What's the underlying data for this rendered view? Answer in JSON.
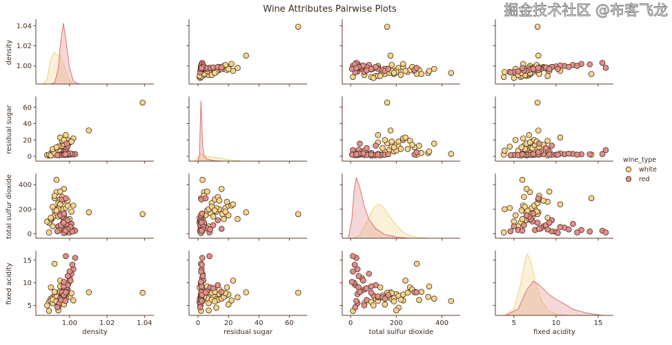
{
  "chart_data": {
    "type": "scatter",
    "subtype": "pairplot",
    "title": "Wine Attributes Pairwise Plots",
    "variables": [
      "density",
      "residual sugar",
      "total sulfur dioxide",
      "fixed acidity"
    ],
    "ranges": {
      "density": [
        0.982,
        1.045
      ],
      "residual sugar": [
        -5.9,
        71.6
      ],
      "total sulfur dioxide": [
        -37,
        480
      ],
      "fixed acidity": [
        2.8,
        16.8
      ]
    },
    "ticks": {
      "density": [
        {
          "v": 1.0,
          "label": "1.00"
        },
        {
          "v": 1.02,
          "label": "1.02"
        },
        {
          "v": 1.04,
          "label": "1.04"
        }
      ],
      "residual sugar": [
        {
          "v": 0,
          "label": "0"
        },
        {
          "v": 20,
          "label": "20"
        },
        {
          "v": 40,
          "label": "40"
        },
        {
          "v": 60,
          "label": "60"
        }
      ],
      "total sulfur dioxide": [
        {
          "v": 0,
          "label": "0"
        },
        {
          "v": 200,
          "label": "200"
        },
        {
          "v": 400,
          "label": "400"
        }
      ],
      "fixed acidity": [
        {
          "v": 5,
          "label": "5"
        },
        {
          "v": 10,
          "label": "10"
        },
        {
          "v": 15,
          "label": "15"
        }
      ]
    },
    "grid": false,
    "legend": {
      "title": "wine_type",
      "placement": "right",
      "entries": [
        "white",
        "red"
      ]
    },
    "colors": {
      "white": "#f3d68e",
      "red": "#df8f8c",
      "edge": "#4b2c1c",
      "white_line": "#eed27f",
      "red_line": "#e06c6c"
    },
    "series": [
      {
        "name": "white",
        "points": [
          [
            0.99,
            1.2,
            110,
            6.5
          ],
          [
            0.991,
            2,
            130,
            6.8
          ],
          [
            0.992,
            5,
            150,
            7.0
          ],
          [
            0.993,
            8,
            170,
            6.9
          ],
          [
            0.994,
            10,
            140,
            7.2
          ],
          [
            0.995,
            12,
            180,
            6.4
          ],
          [
            0.996,
            14,
            200,
            7.5
          ],
          [
            0.997,
            16,
            160,
            6.8
          ],
          [
            0.998,
            18,
            210,
            7.1
          ],
          [
            0.999,
            20,
            230,
            7.4
          ],
          [
            0.989,
            1,
            90,
            5.8
          ],
          [
            0.988,
            1.5,
            100,
            5.0
          ],
          [
            0.99,
            3,
            120,
            6.0
          ],
          [
            0.992,
            6,
            190,
            6.6
          ],
          [
            0.994,
            9,
            250,
            7.8
          ],
          [
            0.995,
            11,
            280,
            8.0
          ],
          [
            0.996,
            13,
            300,
            6.2
          ],
          [
            0.993,
            4,
            340,
            6.9
          ],
          [
            0.997,
            15.5,
            366,
            6.5
          ],
          [
            0.993,
            3,
            440,
            6.0
          ],
          [
            0.992,
            2,
            290,
            14.2
          ],
          [
            1.0,
            17,
            120,
            6.9
          ],
          [
            1.002,
            22,
            230,
            6.1
          ],
          [
            1.0103,
            31.6,
            175,
            7.9
          ],
          [
            1.039,
            65.8,
            160,
            7.8
          ],
          [
            0.991,
            7,
            60,
            5.5
          ],
          [
            0.989,
            2,
            10,
            3.8
          ],
          [
            0.994,
            12,
            210,
            4.5
          ],
          [
            0.996,
            19,
            260,
            9.0
          ],
          [
            0.995,
            23,
            240,
            10.5
          ],
          [
            0.99,
            1.1,
            130,
            9.0
          ],
          [
            0.998,
            26,
            120,
            6.8
          ],
          [
            0.992,
            4,
            310,
            8.0
          ],
          [
            0.994,
            7,
            200,
            3.9
          ],
          [
            0.997,
            20,
            150,
            5.2
          ],
          [
            0.999,
            14,
            270,
            8.5
          ],
          [
            0.991,
            9,
            220,
            6.3
          ],
          [
            0.993,
            11,
            190,
            5.9
          ],
          [
            1.001,
            18,
            180,
            7.7
          ],
          [
            0.995,
            6,
            344,
            9.2
          ]
        ],
        "kde": {
          "density": {
            "x": [
              0.986,
              0.988,
              0.99,
              0.9916,
              0.993,
              0.995,
              0.997,
              0.999,
              1.001,
              1.003
            ],
            "y": [
              0,
              0.08,
              0.4,
              0.5,
              0.47,
              0.45,
              0.3,
              0.12,
              0.02,
              0
            ]
          },
          "residual sugar": {
            "x": [
              -2,
              0,
              1.5,
              4,
              8,
              12,
              16,
              20,
              25,
              30
            ],
            "y": [
              0,
              0.05,
              0.12,
              0.09,
              0.07,
              0.06,
              0.04,
              0.02,
              0.01,
              0
            ]
          },
          "total sulfur dioxide": {
            "x": [
              10,
              40,
              70,
              100,
              120,
              140,
              170,
              200,
              240,
              280,
              350
            ],
            "y": [
              0,
              0.05,
              0.25,
              0.48,
              0.54,
              0.5,
              0.35,
              0.2,
              0.07,
              0.02,
              0
            ]
          },
          "fixed acidity": {
            "x": [
              3.8,
              5,
              5.8,
              6.3,
              6.6,
              7.0,
              7.5,
              8.2,
              9,
              10,
              11.5
            ],
            "y": [
              0,
              0.1,
              0.5,
              0.85,
              0.97,
              0.85,
              0.55,
              0.25,
              0.08,
              0.02,
              0
            ]
          }
        }
      },
      {
        "name": "red",
        "points": [
          [
            0.996,
            2,
            30,
            7.5
          ],
          [
            0.997,
            2.2,
            40,
            8.0
          ],
          [
            0.998,
            2.5,
            60,
            8.5
          ],
          [
            0.999,
            2,
            20,
            9.5
          ],
          [
            0.9995,
            1.9,
            15,
            10.0
          ],
          [
            1.0,
            2.6,
            50,
            11.0
          ],
          [
            1.001,
            3,
            80,
            12.0
          ],
          [
            1.002,
            2.4,
            30,
            13.0
          ],
          [
            1.003,
            2.8,
            25,
            15.5
          ],
          [
            0.998,
            7.5,
            10,
            15.9
          ],
          [
            0.9975,
            1.8,
            100,
            7.2
          ],
          [
            0.997,
            2.1,
            120,
            7.0
          ],
          [
            0.996,
            2,
            140,
            6.8
          ],
          [
            0.995,
            1.9,
            150,
            6.5
          ],
          [
            0.994,
            1.6,
            60,
            5.0
          ],
          [
            0.9945,
            1.5,
            30,
            5.5
          ],
          [
            0.9965,
            4,
            90,
            7.8
          ],
          [
            0.997,
            6,
            45,
            8.2
          ],
          [
            0.998,
            8,
            35,
            9.0
          ],
          [
            0.9985,
            10,
            70,
            8.8
          ],
          [
            0.999,
            13,
            110,
            9.5
          ],
          [
            0.9985,
            15.5,
            40,
            8.0
          ],
          [
            0.996,
            2.2,
            280,
            7.9
          ],
          [
            0.997,
            2.6,
            165,
            7.3
          ],
          [
            1.0,
            2,
            10,
            12.5
          ],
          [
            1.0015,
            2.5,
            18,
            14.0
          ],
          [
            0.9955,
            1.7,
            70,
            6.2
          ],
          [
            0.9968,
            2.3,
            90,
            9.2
          ],
          [
            1.0005,
            3.5,
            55,
            10.5
          ],
          [
            0.9935,
            1.4,
            20,
            4.6
          ],
          [
            0.998,
            5,
            289,
            7.9
          ],
          [
            0.997,
            2,
            6,
            10.2
          ],
          [
            0.999,
            3.2,
            35,
            11.5
          ],
          [
            0.9978,
            2.4,
            25,
            6.0
          ]
        ],
        "kde": {
          "density": {
            "x": [
              0.99,
              0.992,
              0.994,
              0.995,
              0.9967,
              0.998,
              1.0,
              1.002,
              1.004,
              1.006
            ],
            "y": [
              0,
              0.02,
              0.25,
              0.6,
              0.96,
              0.7,
              0.25,
              0.05,
              0.01,
              0
            ]
          },
          "residual sugar": {
            "x": [
              0,
              1,
              1.5,
              2,
              2.5,
              3,
              4,
              6,
              10,
              16
            ],
            "y": [
              0,
              0.1,
              0.6,
              0.95,
              0.6,
              0.25,
              0.08,
              0.03,
              0.01,
              0
            ]
          },
          "total sulfur dioxide": {
            "x": [
              -10,
              5,
              15,
              25,
              40,
              60,
              80,
              110,
              150,
              200,
              260
            ],
            "y": [
              0,
              0.3,
              0.75,
              0.96,
              0.8,
              0.5,
              0.3,
              0.15,
              0.06,
              0.02,
              0
            ]
          },
          "fixed acidity": {
            "x": [
              4,
              5.5,
              6.5,
              7.3,
              8,
              9,
              10,
              11,
              12,
              13.5,
              15.5
            ],
            "y": [
              0,
              0.1,
              0.4,
              0.54,
              0.48,
              0.35,
              0.25,
              0.18,
              0.1,
              0.04,
              0
            ]
          }
        }
      }
    ]
  },
  "watermark": "掘金技术社区 @布客飞龙"
}
